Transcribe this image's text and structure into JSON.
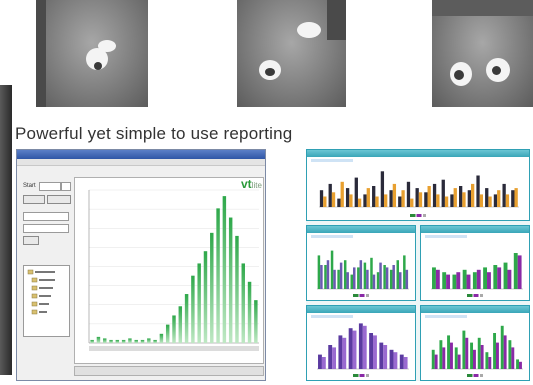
{
  "headline": "Powerful yet simple to use reporting",
  "report_window": {
    "title_text": "",
    "start_label": "Start",
    "chart_title": "",
    "logo_main": "vt",
    "logo_suffix": "lite"
  },
  "colors": {
    "accent_green": "#2ea84a",
    "light_green": "#bfe8c4",
    "purple": "#8a2aa6",
    "orange": "#e8a030",
    "panel_border": "#2fa0b4"
  },
  "icons": [
    "camera-snapshot",
    "window-title-bar",
    "tree-folder-icon"
  ],
  "main_chart_values": [
    2,
    4,
    3,
    2,
    2,
    2,
    3,
    2,
    2,
    3,
    2,
    6,
    12,
    18,
    24,
    32,
    44,
    52,
    60,
    72,
    88,
    96,
    82,
    70,
    52,
    40,
    28
  ],
  "dashboard_panels": [
    {
      "values_a": [
        40,
        55,
        20,
        45,
        70,
        30,
        50,
        85,
        40,
        25,
        60,
        45,
        35,
        55,
        65,
        30,
        50,
        40,
        75,
        45,
        30,
        55,
        40
      ],
      "values_b": [
        25,
        35,
        60,
        30,
        20,
        45,
        25,
        30,
        55,
        40,
        20,
        35,
        50,
        30,
        25,
        45,
        35,
        55,
        30,
        25,
        40,
        30,
        45
      ]
    },
    {
      "values_a": [
        70,
        50,
        80,
        40,
        60,
        30,
        45,
        55,
        65,
        35,
        50,
        40,
        60,
        70
      ],
      "values_b": [
        50,
        60,
        40,
        55,
        35,
        45,
        60,
        40,
        30,
        55,
        45,
        50,
        35,
        40
      ]
    },
    {
      "values_a": [
        45,
        35,
        30,
        40,
        35,
        45,
        50,
        55,
        75
      ],
      "values_b": [
        40,
        30,
        35,
        30,
        40,
        35,
        45,
        40,
        70
      ]
    },
    {
      "values_a": [
        30,
        50,
        70,
        85,
        95,
        75,
        55,
        40,
        30
      ],
      "values_b": [
        25,
        45,
        65,
        80,
        90,
        70,
        50,
        35,
        25
      ]
    },
    {
      "values_a": [
        40,
        60,
        70,
        45,
        80,
        55,
        65,
        35,
        75,
        90,
        60,
        20
      ],
      "values_b": [
        30,
        45,
        55,
        30,
        65,
        40,
        50,
        25,
        55,
        70,
        45,
        15
      ]
    }
  ]
}
